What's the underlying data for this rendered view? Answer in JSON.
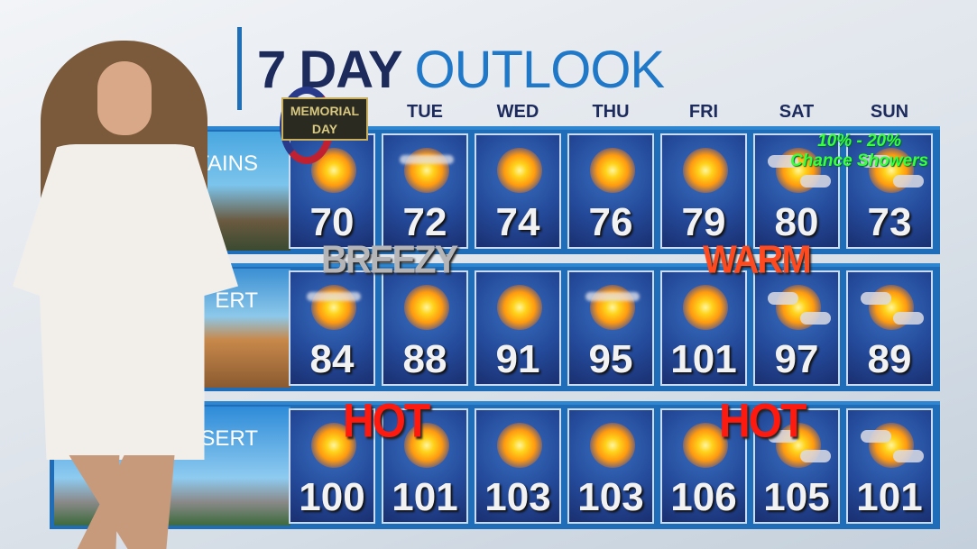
{
  "title": {
    "bold": "7 DAY",
    "light": "OUTLOOK"
  },
  "days": [
    "TUE",
    "WED",
    "THU",
    "FRI",
    "SAT",
    "SUN"
  ],
  "rows": [
    {
      "label": "TAINS",
      "temps": [
        "70",
        "72",
        "74",
        "76",
        "79",
        "80",
        "73"
      ],
      "icons": [
        "sun",
        "sun-haze",
        "sun",
        "sun",
        "sun",
        "sun-clouds",
        "sun-clouds"
      ]
    },
    {
      "label": "ERT",
      "temps": [
        "84",
        "88",
        "91",
        "95",
        "101",
        "97",
        "89"
      ],
      "icons": [
        "sun-haze",
        "sun",
        "sun",
        "sun-haze",
        "sun",
        "sun-clouds",
        "sun-clouds"
      ]
    },
    {
      "label": "SERT",
      "temps": [
        "100",
        "101",
        "103",
        "103",
        "106",
        "105",
        "101"
      ],
      "icons": [
        "sun",
        "sun",
        "sun",
        "sun",
        "sun",
        "sun-clouds",
        "sun-clouds"
      ]
    }
  ],
  "annotations": {
    "breezy": "BREEZY",
    "warm": "WARM",
    "hot1": "HOT",
    "hot2": "HOT",
    "showers_line1": "10% - 20%",
    "showers_line2": "Chance Showers"
  },
  "badge": {
    "line1": "MEMORIAL",
    "line2": "DAY"
  },
  "colors": {
    "panel": "#1f6cb8",
    "title_dark": "#1c2a5c",
    "title_light": "#1f78c8",
    "hot": "#ff1a10",
    "showers": "#39ff3c"
  }
}
